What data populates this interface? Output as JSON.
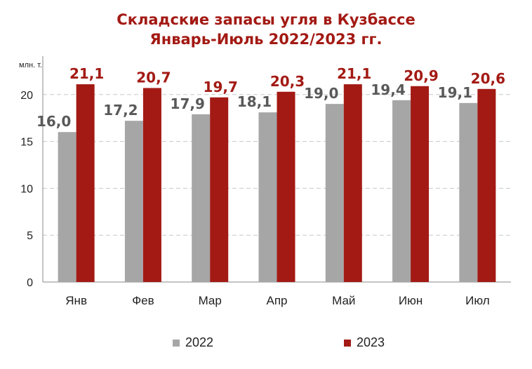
{
  "title_line1": "Складские запасы угля в Кузбассе",
  "title_line2": "Январь-Июль 2022/2023 гг.",
  "colors": {
    "accent": "#a31a14",
    "series_2022": "#a6a6a6",
    "series_2023": "#a31a14",
    "grid": "#c8c8c8"
  },
  "chart_data": {
    "type": "bar",
    "title": "Складские запасы угля в Кузбассе Январь-Июль 2022/2023 гг.",
    "ylabel": "млн. т.",
    "ylim": [
      0,
      22.5
    ],
    "yticks": [
      "0",
      "5",
      "10",
      "15",
      "20"
    ],
    "categories": [
      "Янв",
      "Фев",
      "Мар",
      "Апр",
      "Май",
      "Июн",
      "Июл"
    ],
    "series": [
      {
        "name": "2022",
        "values": [
          16.0,
          17.2,
          17.9,
          18.1,
          19.0,
          19.4,
          19.1
        ],
        "labels": [
          "16,0",
          "17,2",
          "17,9",
          "18,1",
          "19,0",
          "19,4",
          "19,1"
        ]
      },
      {
        "name": "2023",
        "values": [
          21.1,
          20.7,
          19.7,
          20.3,
          21.1,
          20.9,
          20.6
        ],
        "labels": [
          "21,1",
          "20,7",
          "19,7",
          "20,3",
          "21,1",
          "20,9",
          "20,6"
        ]
      }
    ],
    "grid": true,
    "legend": "bottom"
  }
}
